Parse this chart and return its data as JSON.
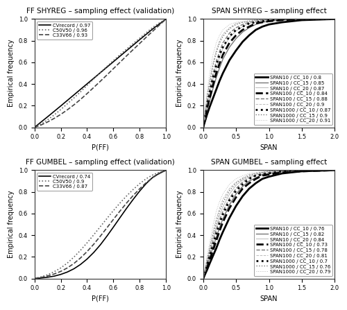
{
  "titles": [
    "FF SHYREG – sampling effect (validation)",
    "SPAN SHYREG – sampling effect",
    "FF GUMBEL – sampling effect (validation)",
    "SPAN GUMBEL – sampling effect"
  ],
  "ff_shyreg": {
    "xlabel": "P(FF)",
    "ylabel": "Empirical frequency",
    "xlim": [
      0.0,
      1.0
    ],
    "ylim": [
      0.0,
      1.0
    ],
    "lines": [
      {
        "label": "CVrecord / 0.97",
        "style": "solid",
        "lw": 1.2,
        "color": "#000000",
        "x": [
          0.0,
          0.1,
          0.2,
          0.3,
          0.4,
          0.5,
          0.6,
          0.7,
          0.8,
          0.9,
          1.0
        ],
        "y": [
          0.0,
          0.098,
          0.198,
          0.3,
          0.402,
          0.504,
          0.606,
          0.708,
          0.81,
          0.91,
          1.0
        ]
      },
      {
        "label": "C50V50 / 0.96",
        "style": "dotted",
        "lw": 1.2,
        "color": "#666666",
        "x": [
          0.0,
          0.05,
          0.1,
          0.15,
          0.2,
          0.25,
          0.3,
          0.35,
          0.4,
          0.45,
          0.5,
          0.55,
          0.6,
          0.65,
          0.7,
          0.75,
          0.8,
          0.85,
          0.9,
          0.95,
          1.0
        ],
        "y": [
          0.0,
          0.03,
          0.07,
          0.115,
          0.165,
          0.218,
          0.272,
          0.328,
          0.388,
          0.447,
          0.506,
          0.562,
          0.617,
          0.671,
          0.723,
          0.773,
          0.823,
          0.874,
          0.924,
          0.965,
          1.0
        ]
      },
      {
        "label": "C33V66 / 0.93",
        "style": "dashed",
        "lw": 1.2,
        "color": "#444444",
        "x": [
          0.0,
          0.05,
          0.1,
          0.15,
          0.2,
          0.25,
          0.3,
          0.35,
          0.4,
          0.45,
          0.5,
          0.55,
          0.6,
          0.65,
          0.7,
          0.75,
          0.8,
          0.85,
          0.9,
          0.95,
          1.0
        ],
        "y": [
          0.0,
          0.022,
          0.05,
          0.083,
          0.12,
          0.162,
          0.208,
          0.258,
          0.312,
          0.368,
          0.425,
          0.483,
          0.542,
          0.601,
          0.66,
          0.718,
          0.775,
          0.833,
          0.889,
          0.945,
          1.0
        ]
      }
    ]
  },
  "span_shyreg": {
    "xlabel": "SPAN",
    "ylabel": "Empirical frequency",
    "xlim": [
      0.0,
      2.0
    ],
    "ylim": [
      0.0,
      1.0
    ],
    "lines": [
      {
        "label": "SPAN10 / CC_10 / 0.8",
        "style": "solid",
        "lw": 2.0,
        "color": "#000000",
        "x": [
          0.0,
          0.03,
          0.06,
          0.1,
          0.15,
          0.2,
          0.25,
          0.3,
          0.4,
          0.5,
          0.6,
          0.7,
          0.8,
          0.9,
          1.0,
          1.2,
          1.5,
          2.0
        ],
        "y": [
          0.0,
          0.06,
          0.12,
          0.19,
          0.27,
          0.35,
          0.43,
          0.5,
          0.62,
          0.71,
          0.79,
          0.85,
          0.9,
          0.93,
          0.95,
          0.97,
          0.99,
          1.0
        ]
      },
      {
        "label": "SPAN10 / CC_15 / 0.85",
        "style": "solid",
        "lw": 1.0,
        "color": "#777777",
        "x": [
          0.0,
          0.03,
          0.06,
          0.1,
          0.15,
          0.2,
          0.25,
          0.3,
          0.4,
          0.5,
          0.6,
          0.7,
          0.8,
          0.9,
          1.0,
          1.2,
          1.5,
          2.0
        ],
        "y": [
          0.0,
          0.08,
          0.16,
          0.25,
          0.36,
          0.46,
          0.55,
          0.63,
          0.74,
          0.82,
          0.88,
          0.92,
          0.95,
          0.97,
          0.98,
          0.99,
          1.0,
          1.0
        ]
      },
      {
        "label": "SPAN10 / CC_20 / 0.87",
        "style": "solid",
        "lw": 0.7,
        "color": "#bbbbbb",
        "x": [
          0.0,
          0.03,
          0.06,
          0.1,
          0.15,
          0.2,
          0.25,
          0.3,
          0.4,
          0.5,
          0.6,
          0.7,
          0.8,
          0.9,
          1.0,
          1.2,
          1.5,
          2.0
        ],
        "y": [
          0.0,
          0.1,
          0.2,
          0.31,
          0.44,
          0.55,
          0.65,
          0.73,
          0.83,
          0.89,
          0.93,
          0.96,
          0.97,
          0.98,
          0.99,
          1.0,
          1.0,
          1.0
        ]
      },
      {
        "label": "SPAN100 / CC_10 / 0.84",
        "style": "dashed",
        "lw": 2.0,
        "color": "#000000",
        "x": [
          0.0,
          0.03,
          0.06,
          0.1,
          0.15,
          0.2,
          0.25,
          0.3,
          0.4,
          0.5,
          0.6,
          0.7,
          0.8,
          0.9,
          1.0,
          1.2,
          1.5,
          2.0
        ],
        "y": [
          0.0,
          0.09,
          0.18,
          0.27,
          0.39,
          0.5,
          0.59,
          0.67,
          0.78,
          0.85,
          0.9,
          0.93,
          0.96,
          0.97,
          0.98,
          0.99,
          1.0,
          1.0
        ]
      },
      {
        "label": "SPAN100 / CC_15 / 0.88",
        "style": "dashed",
        "lw": 1.0,
        "color": "#777777",
        "x": [
          0.0,
          0.03,
          0.06,
          0.1,
          0.15,
          0.2,
          0.25,
          0.3,
          0.4,
          0.5,
          0.6,
          0.7,
          0.8,
          0.9,
          1.0,
          1.2,
          1.5,
          2.0
        ],
        "y": [
          0.0,
          0.12,
          0.23,
          0.35,
          0.49,
          0.61,
          0.7,
          0.78,
          0.87,
          0.92,
          0.95,
          0.97,
          0.98,
          0.99,
          0.995,
          1.0,
          1.0,
          1.0
        ]
      },
      {
        "label": "SPAN100 / CC_20 / 0.9",
        "style": "dashed",
        "lw": 0.7,
        "color": "#bbbbbb",
        "x": [
          0.0,
          0.03,
          0.06,
          0.1,
          0.15,
          0.2,
          0.25,
          0.3,
          0.4,
          0.5,
          0.6,
          0.7,
          0.8,
          0.9,
          1.0,
          1.2,
          1.5,
          2.0
        ],
        "y": [
          0.0,
          0.15,
          0.29,
          0.43,
          0.59,
          0.71,
          0.8,
          0.86,
          0.92,
          0.96,
          0.97,
          0.98,
          0.99,
          0.995,
          1.0,
          1.0,
          1.0,
          1.0
        ]
      },
      {
        "label": "SPAN1000 / CC_10 / 0.87",
        "style": "dotted",
        "lw": 2.0,
        "color": "#000000",
        "x": [
          0.0,
          0.03,
          0.06,
          0.1,
          0.15,
          0.2,
          0.25,
          0.3,
          0.4,
          0.5,
          0.6,
          0.7,
          0.8,
          0.9,
          1.0,
          1.2,
          1.5,
          2.0
        ],
        "y": [
          0.0,
          0.11,
          0.21,
          0.32,
          0.46,
          0.57,
          0.67,
          0.74,
          0.84,
          0.9,
          0.93,
          0.96,
          0.97,
          0.98,
          0.99,
          1.0,
          1.0,
          1.0
        ]
      },
      {
        "label": "SPAN1000 / CC_15 / 0.9",
        "style": "dotted",
        "lw": 1.0,
        "color": "#777777",
        "x": [
          0.0,
          0.03,
          0.06,
          0.1,
          0.15,
          0.2,
          0.25,
          0.3,
          0.4,
          0.5,
          0.6,
          0.7,
          0.8,
          0.9,
          1.0,
          1.2,
          1.5,
          2.0
        ],
        "y": [
          0.0,
          0.14,
          0.27,
          0.41,
          0.57,
          0.69,
          0.78,
          0.84,
          0.91,
          0.95,
          0.97,
          0.98,
          0.99,
          0.995,
          1.0,
          1.0,
          1.0,
          1.0
        ]
      },
      {
        "label": "SPAN1000 / CC_20 / 0.91",
        "style": "dotted",
        "lw": 0.7,
        "color": "#bbbbbb",
        "x": [
          0.0,
          0.03,
          0.06,
          0.1,
          0.15,
          0.2,
          0.25,
          0.3,
          0.4,
          0.5,
          0.6,
          0.7,
          0.8,
          0.9,
          1.0,
          1.2,
          1.5,
          2.0
        ],
        "y": [
          0.0,
          0.17,
          0.33,
          0.5,
          0.67,
          0.78,
          0.85,
          0.9,
          0.95,
          0.97,
          0.98,
          0.99,
          0.995,
          1.0,
          1.0,
          1.0,
          1.0,
          1.0
        ]
      }
    ]
  },
  "ff_gumbel": {
    "xlabel": "P(FF)",
    "ylabel": "Empirical frequency",
    "xlim": [
      0.0,
      1.0
    ],
    "ylim": [
      0.0,
      1.0
    ],
    "lines": [
      {
        "label": "CVrecord / 0.74",
        "style": "solid",
        "lw": 1.2,
        "color": "#000000",
        "x": [
          0.0,
          0.05,
          0.1,
          0.15,
          0.2,
          0.25,
          0.3,
          0.35,
          0.4,
          0.45,
          0.5,
          0.55,
          0.6,
          0.65,
          0.7,
          0.75,
          0.8,
          0.85,
          0.9,
          0.95,
          1.0
        ],
        "y": [
          0.0,
          0.005,
          0.012,
          0.022,
          0.038,
          0.06,
          0.09,
          0.13,
          0.18,
          0.24,
          0.31,
          0.39,
          0.475,
          0.562,
          0.648,
          0.73,
          0.808,
          0.878,
          0.935,
          0.972,
          1.0
        ]
      },
      {
        "label": "C50V50 / 0.9",
        "style": "dotted",
        "lw": 1.2,
        "color": "#666666",
        "x": [
          0.0,
          0.05,
          0.1,
          0.15,
          0.2,
          0.25,
          0.3,
          0.35,
          0.4,
          0.45,
          0.5,
          0.55,
          0.6,
          0.65,
          0.7,
          0.75,
          0.8,
          0.85,
          0.9,
          0.95,
          1.0
        ],
        "y": [
          0.0,
          0.015,
          0.035,
          0.063,
          0.098,
          0.143,
          0.198,
          0.261,
          0.33,
          0.403,
          0.478,
          0.553,
          0.627,
          0.697,
          0.762,
          0.822,
          0.876,
          0.922,
          0.957,
          0.981,
          1.0
        ]
      },
      {
        "label": "C33V66 / 0.87",
        "style": "dashed",
        "lw": 1.2,
        "color": "#444444",
        "x": [
          0.0,
          0.05,
          0.1,
          0.15,
          0.2,
          0.25,
          0.3,
          0.35,
          0.4,
          0.45,
          0.5,
          0.55,
          0.6,
          0.65,
          0.7,
          0.75,
          0.8,
          0.85,
          0.9,
          0.95,
          1.0
        ],
        "y": [
          0.0,
          0.01,
          0.024,
          0.042,
          0.066,
          0.098,
          0.139,
          0.19,
          0.249,
          0.316,
          0.39,
          0.467,
          0.546,
          0.623,
          0.697,
          0.766,
          0.829,
          0.886,
          0.933,
          0.969,
          1.0
        ]
      }
    ]
  },
  "span_gumbel": {
    "xlabel": "SPAN",
    "ylabel": "Empirical frequency",
    "xlim": [
      0.0,
      2.0
    ],
    "ylim": [
      0.0,
      1.0
    ],
    "lines": [
      {
        "label": "SPAN10 / CC_10 / 0.76",
        "style": "solid",
        "lw": 2.0,
        "color": "#000000",
        "x": [
          0.0,
          0.03,
          0.06,
          0.1,
          0.15,
          0.2,
          0.25,
          0.3,
          0.4,
          0.5,
          0.6,
          0.7,
          0.8,
          0.9,
          1.0,
          1.2,
          1.5,
          2.0
        ],
        "y": [
          0.0,
          0.04,
          0.08,
          0.14,
          0.21,
          0.28,
          0.36,
          0.43,
          0.56,
          0.67,
          0.76,
          0.83,
          0.88,
          0.92,
          0.94,
          0.97,
          0.99,
          1.0
        ]
      },
      {
        "label": "SPAN10 / CC_15 / 0.82",
        "style": "solid",
        "lw": 1.0,
        "color": "#777777",
        "x": [
          0.0,
          0.03,
          0.06,
          0.1,
          0.15,
          0.2,
          0.25,
          0.3,
          0.4,
          0.5,
          0.6,
          0.7,
          0.8,
          0.9,
          1.0,
          1.2,
          1.5,
          2.0
        ],
        "y": [
          0.0,
          0.06,
          0.12,
          0.19,
          0.29,
          0.38,
          0.47,
          0.55,
          0.68,
          0.78,
          0.85,
          0.9,
          0.93,
          0.96,
          0.97,
          0.99,
          1.0,
          1.0
        ]
      },
      {
        "label": "SPAN10 / CC_20 / 0.84",
        "style": "solid",
        "lw": 0.7,
        "color": "#bbbbbb",
        "x": [
          0.0,
          0.03,
          0.06,
          0.1,
          0.15,
          0.2,
          0.25,
          0.3,
          0.4,
          0.5,
          0.6,
          0.7,
          0.8,
          0.9,
          1.0,
          1.2,
          1.5,
          2.0
        ],
        "y": [
          0.0,
          0.08,
          0.16,
          0.25,
          0.37,
          0.48,
          0.58,
          0.66,
          0.78,
          0.86,
          0.91,
          0.94,
          0.96,
          0.98,
          0.99,
          1.0,
          1.0,
          1.0
        ]
      },
      {
        "label": "SPAN100 / CC_10 / 0.73",
        "style": "dashed",
        "lw": 2.0,
        "color": "#000000",
        "x": [
          0.0,
          0.03,
          0.06,
          0.1,
          0.15,
          0.2,
          0.25,
          0.3,
          0.4,
          0.5,
          0.6,
          0.7,
          0.8,
          0.9,
          1.0,
          1.2,
          1.5,
          2.0
        ],
        "y": [
          0.0,
          0.05,
          0.1,
          0.17,
          0.26,
          0.35,
          0.44,
          0.52,
          0.65,
          0.75,
          0.83,
          0.88,
          0.92,
          0.95,
          0.96,
          0.98,
          0.99,
          1.0
        ]
      },
      {
        "label": "SPAN100 / CC_15 / 0.78",
        "style": "dashed",
        "lw": 1.0,
        "color": "#777777",
        "x": [
          0.0,
          0.03,
          0.06,
          0.1,
          0.15,
          0.2,
          0.25,
          0.3,
          0.4,
          0.5,
          0.6,
          0.7,
          0.8,
          0.9,
          1.0,
          1.2,
          1.5,
          2.0
        ],
        "y": [
          0.0,
          0.07,
          0.14,
          0.23,
          0.34,
          0.45,
          0.54,
          0.62,
          0.74,
          0.83,
          0.89,
          0.93,
          0.95,
          0.97,
          0.98,
          0.99,
          1.0,
          1.0
        ]
      },
      {
        "label": "SPAN100 / CC_20 / 0.81",
        "style": "dashed",
        "lw": 0.7,
        "color": "#bbbbbb",
        "x": [
          0.0,
          0.03,
          0.06,
          0.1,
          0.15,
          0.2,
          0.25,
          0.3,
          0.4,
          0.5,
          0.6,
          0.7,
          0.8,
          0.9,
          1.0,
          1.2,
          1.5,
          2.0
        ],
        "y": [
          0.0,
          0.09,
          0.18,
          0.29,
          0.43,
          0.55,
          0.65,
          0.73,
          0.83,
          0.89,
          0.93,
          0.96,
          0.97,
          0.98,
          0.99,
          1.0,
          1.0,
          1.0
        ]
      },
      {
        "label": "SPAN1000 / CC_10 / 0.7",
        "style": "dotted",
        "lw": 2.0,
        "color": "#000000",
        "x": [
          0.0,
          0.03,
          0.06,
          0.1,
          0.15,
          0.2,
          0.25,
          0.3,
          0.4,
          0.5,
          0.6,
          0.7,
          0.8,
          0.9,
          1.0,
          1.2,
          1.5,
          2.0
        ],
        "y": [
          0.0,
          0.06,
          0.13,
          0.21,
          0.31,
          0.41,
          0.51,
          0.59,
          0.72,
          0.81,
          0.87,
          0.92,
          0.95,
          0.96,
          0.97,
          0.99,
          1.0,
          1.0
        ]
      },
      {
        "label": "SPAN1000 / CC_15 / 0.76",
        "style": "dotted",
        "lw": 1.0,
        "color": "#777777",
        "x": [
          0.0,
          0.03,
          0.06,
          0.1,
          0.15,
          0.2,
          0.25,
          0.3,
          0.4,
          0.5,
          0.6,
          0.7,
          0.8,
          0.9,
          1.0,
          1.2,
          1.5,
          2.0
        ],
        "y": [
          0.0,
          0.08,
          0.17,
          0.27,
          0.4,
          0.52,
          0.62,
          0.7,
          0.81,
          0.88,
          0.92,
          0.95,
          0.97,
          0.98,
          0.99,
          1.0,
          1.0,
          1.0
        ]
      },
      {
        "label": "SPAN1000 / CC_20 / 0.79",
        "style": "dotted",
        "lw": 0.7,
        "color": "#bbbbbb",
        "x": [
          0.0,
          0.03,
          0.06,
          0.1,
          0.15,
          0.2,
          0.25,
          0.3,
          0.4,
          0.5,
          0.6,
          0.7,
          0.8,
          0.9,
          1.0,
          1.2,
          1.5,
          2.0
        ],
        "y": [
          0.0,
          0.1,
          0.21,
          0.33,
          0.49,
          0.62,
          0.71,
          0.78,
          0.87,
          0.92,
          0.95,
          0.97,
          0.98,
          0.99,
          1.0,
          1.0,
          1.0,
          1.0
        ]
      }
    ]
  },
  "background": "#ffffff",
  "legend_fontsize": 5.0,
  "axis_fontsize": 7,
  "title_fontsize": 7.5,
  "tick_fontsize": 6
}
